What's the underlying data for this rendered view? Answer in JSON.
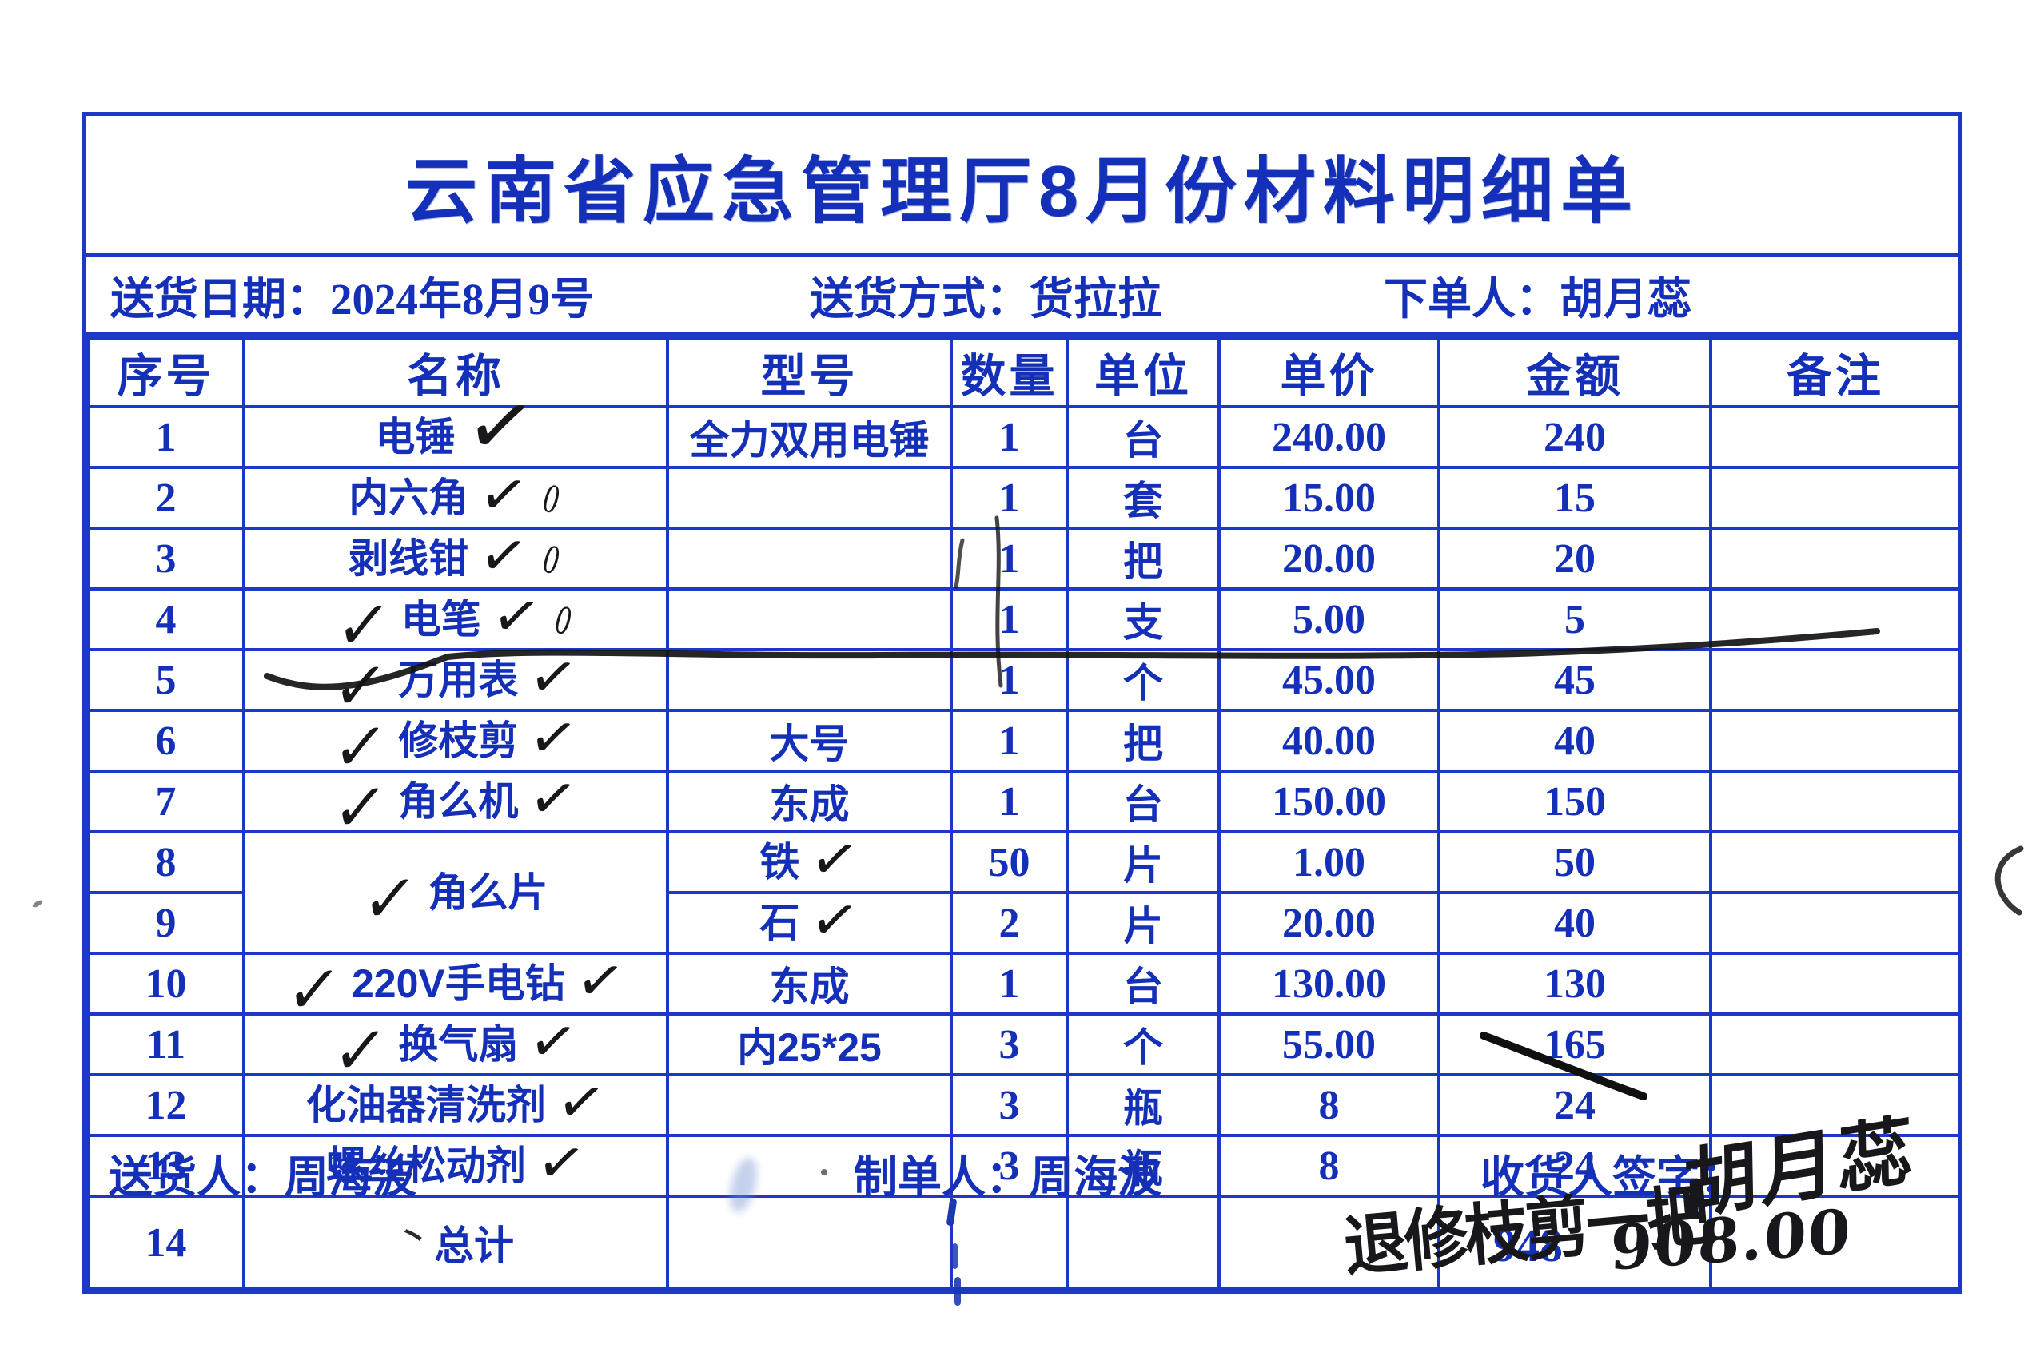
{
  "colors": {
    "ink_blue": "#1d38c8",
    "ink_black": "#17171c"
  },
  "title": "云南省应急管理厅8月份材料明细单",
  "info": {
    "delivery_date_label": "送货日期：",
    "delivery_date": "2024年8月9号",
    "delivery_method_label": "送货方式：",
    "delivery_method": "货拉拉",
    "orderer_label": "下单人：",
    "orderer": "胡月蕊"
  },
  "table": {
    "headers": [
      "序号",
      "名称",
      "型号",
      "数量",
      "单位",
      "单价",
      "金额",
      "备注"
    ],
    "rows": [
      {
        "no": "1",
        "name": "电锤",
        "model": "全力双用电锤",
        "qty": "1",
        "unit": "台",
        "price": "240.00",
        "amount": "240",
        "remark": "",
        "marks": [
          "check_after_tall"
        ]
      },
      {
        "no": "2",
        "name": "内六角",
        "model": "",
        "qty": "1",
        "unit": "套",
        "price": "15.00",
        "amount": "15",
        "remark": "",
        "marks": [
          "check_after",
          "zero_after"
        ]
      },
      {
        "no": "3",
        "name": "剥线钳",
        "model": "",
        "qty": "1",
        "unit": "把",
        "price": "20.00",
        "amount": "20",
        "remark": "",
        "marks": [
          "check_after",
          "zero_after"
        ]
      },
      {
        "no": "4",
        "name": "电笔",
        "model": "",
        "qty": "1",
        "unit": "支",
        "price": "5.00",
        "amount": "5",
        "remark": "",
        "marks": [
          "check_before",
          "check_after",
          "zero_after"
        ]
      },
      {
        "no": "5",
        "name": "万用表",
        "model": "",
        "qty": "1",
        "unit": "个",
        "price": "45.00",
        "amount": "45",
        "remark": "",
        "marks": [
          "check_before",
          "check_after"
        ]
      },
      {
        "no": "6",
        "name": "修枝剪",
        "model": "大号",
        "qty": "1",
        "unit": "把",
        "price": "40.00",
        "amount": "40",
        "remark": "",
        "marks": [
          "check_before",
          "check_after"
        ],
        "struck": true
      },
      {
        "no": "7",
        "name": "角么机",
        "model": "东成",
        "qty": "1",
        "unit": "台",
        "price": "150.00",
        "amount": "150",
        "remark": "",
        "marks": [
          "check_before",
          "check_after"
        ]
      },
      {
        "no": "8",
        "name": "角么片",
        "rowspan": 2,
        "model": "铁",
        "model_check": true,
        "qty": "50",
        "unit": "片",
        "price": "1.00",
        "amount": "50",
        "remark": "",
        "marks": [
          "check_before"
        ]
      },
      {
        "no": "9",
        "name": null,
        "model": "石",
        "model_check": true,
        "qty": "2",
        "unit": "片",
        "price": "20.00",
        "amount": "40",
        "remark": "",
        "marks": []
      },
      {
        "no": "10",
        "name": "220V手电钻",
        "model": "东成",
        "qty": "1",
        "unit": "台",
        "price": "130.00",
        "amount": "130",
        "remark": "",
        "marks": [
          "check_before",
          "check_after"
        ]
      },
      {
        "no": "11",
        "name": "换气扇",
        "model": "内25*25",
        "qty": "3",
        "unit": "个",
        "price": "55.00",
        "amount": "165",
        "remark": "",
        "marks": [
          "check_before",
          "check_after"
        ]
      },
      {
        "no": "12",
        "name": "化油器清洗剂",
        "model": "",
        "qty": "3",
        "unit": "瓶",
        "price": "8",
        "amount": "24",
        "remark": "",
        "marks": [
          "check_after"
        ]
      },
      {
        "no": "13",
        "name": "螺丝松动剂",
        "model": "",
        "qty": "3",
        "unit": "瓶",
        "price": "8",
        "amount": "24",
        "remark": "",
        "marks": [
          "check_after"
        ]
      }
    ],
    "total_row": {
      "no": "14",
      "pre_mark": "丶",
      "name": "总计",
      "amount_printed": "948",
      "amount_corrected": "908.00"
    }
  },
  "footer": {
    "deliverer_label": "送货人：",
    "deliverer": "周海波",
    "preparer_label": "制单人：",
    "preparer": "周海波",
    "receiver_label": "收货人签字：",
    "receiver_signature": "胡月蕊",
    "handwritten_note": "退修枝剪一把"
  }
}
